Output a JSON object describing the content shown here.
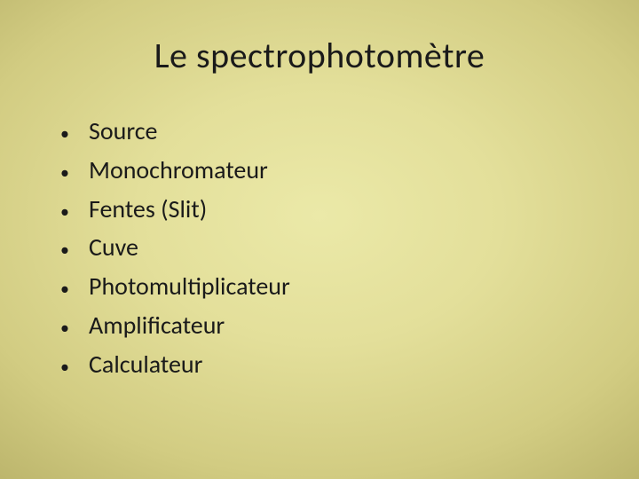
{
  "slide": {
    "title": "Le spectrophotomètre",
    "bullets": [
      "Source",
      "Monochromateur",
      "Fentes (Slit)",
      "Cuve",
      "Photomultiplicateur",
      "Amplificateur",
      "Calculateur"
    ]
  },
  "style": {
    "background_gradient_center": "#ebe9a8",
    "background_gradient_edge": "#a59d5a",
    "title_color": "#1a1a1a",
    "title_fontsize": 40,
    "bullet_fontsize": 28,
    "bullet_color": "#1a1a1a",
    "font_family": "Calibri"
  }
}
